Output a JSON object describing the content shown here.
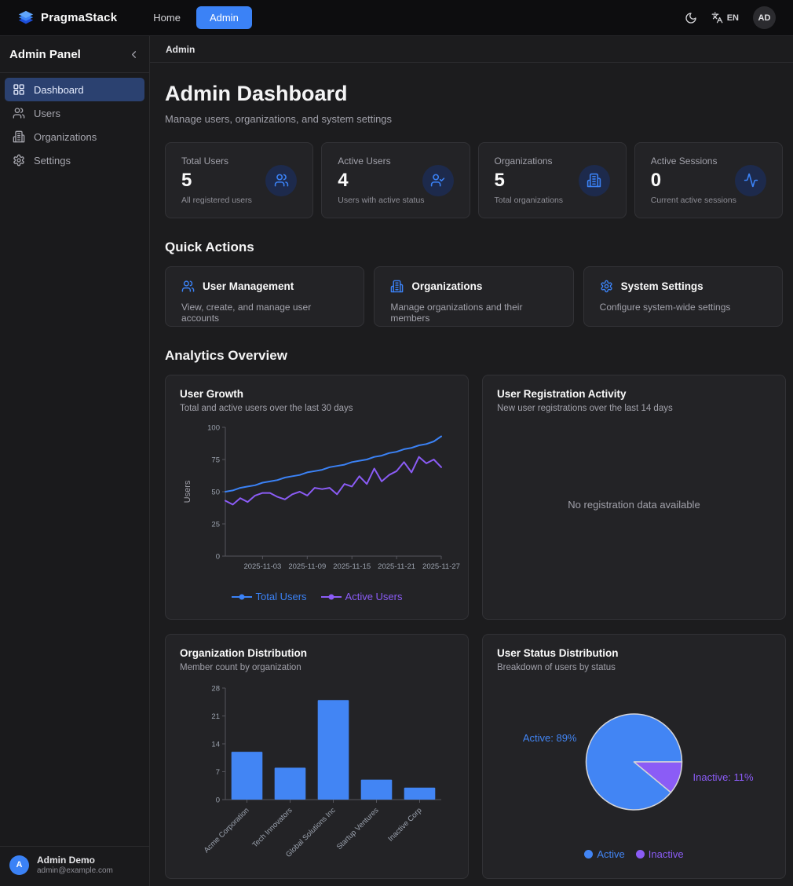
{
  "navbar": {
    "brand": "PragmaStack",
    "links": [
      {
        "label": "Home",
        "active": false
      },
      {
        "label": "Admin",
        "active": true
      }
    ],
    "language": "EN",
    "avatar_initials": "AD"
  },
  "sidebar": {
    "title": "Admin Panel",
    "items": [
      {
        "label": "Dashboard",
        "icon": "dashboard-icon",
        "active": true
      },
      {
        "label": "Users",
        "icon": "users-icon",
        "active": false
      },
      {
        "label": "Organizations",
        "icon": "building-icon",
        "active": false
      },
      {
        "label": "Settings",
        "icon": "gear-icon",
        "active": false
      }
    ],
    "user": {
      "initial": "A",
      "name": "Admin Demo",
      "email": "admin@example.com"
    }
  },
  "breadcrumb": "Admin",
  "header": {
    "title": "Admin Dashboard",
    "subtitle": "Manage users, organizations, and system settings"
  },
  "stats": [
    {
      "label": "Total Users",
      "value": "5",
      "description": "All registered users",
      "icon": "users-icon"
    },
    {
      "label": "Active Users",
      "value": "4",
      "description": "Users with active status",
      "icon": "user-check-icon"
    },
    {
      "label": "Organizations",
      "value": "5",
      "description": "Total organizations",
      "icon": "building-icon"
    },
    {
      "label": "Active Sessions",
      "value": "0",
      "description": "Current active sessions",
      "icon": "activity-icon"
    }
  ],
  "quick_actions": {
    "heading": "Quick Actions",
    "cards": [
      {
        "title": "User Management",
        "description": "View, create, and manage user accounts",
        "icon": "users-icon"
      },
      {
        "title": "Organizations",
        "description": "Manage organizations and their members",
        "icon": "building-icon"
      },
      {
        "title": "System Settings",
        "description": "Configure system-wide settings",
        "icon": "gear-icon"
      }
    ]
  },
  "analytics": {
    "heading": "Analytics Overview"
  },
  "colors": {
    "accent_blue": "#3b82f6",
    "purple": "#8b5cf6",
    "active_nav_bg": "#2b4170",
    "pie_blue": "#4285f4"
  },
  "chart_data": [
    {
      "name": "user-growth",
      "type": "line",
      "title": "User Growth",
      "subtitle": "Total and active users over the last 30 days",
      "ylabel": "Users",
      "ylim": [
        0,
        100
      ],
      "yticks": [
        0,
        25,
        50,
        75,
        100
      ],
      "x_tick_labels": [
        "2025-11-03",
        "2025-11-09",
        "2025-11-15",
        "2025-11-21",
        "2025-11-27"
      ],
      "tick_indices": [
        5,
        11,
        17,
        23,
        29
      ],
      "grid": false,
      "legend_position": "bottom",
      "series": [
        {
          "name": "Total Users",
          "color": "#3b82f6",
          "values": [
            50,
            51,
            53,
            54,
            55,
            57,
            58,
            59,
            61,
            62,
            63,
            65,
            66,
            67,
            69,
            70,
            71,
            73,
            74,
            75,
            77,
            78,
            80,
            81,
            83,
            84,
            86,
            87,
            89,
            93
          ]
        },
        {
          "name": "Active Users",
          "color": "#8b5cf6",
          "values": [
            43,
            40,
            45,
            42,
            47,
            49,
            49,
            46,
            44,
            48,
            50,
            47,
            53,
            52,
            53,
            48,
            56,
            54,
            62,
            56,
            68,
            58,
            63,
            66,
            73,
            65,
            77,
            72,
            75,
            69
          ]
        }
      ]
    },
    {
      "name": "user-registration-activity",
      "type": "bar",
      "title": "User Registration Activity",
      "subtitle": "New user registrations over the last 14 days",
      "categories": [],
      "values": [],
      "empty_message": "No registration data available"
    },
    {
      "name": "organization-distribution",
      "type": "bar",
      "title": "Organization Distribution",
      "subtitle": "Member count by organization",
      "categories": [
        "Acme Corporation",
        "Tech Innovators",
        "Global Solutions Inc",
        "Startup Ventures",
        "Inactive Corp"
      ],
      "values": [
        12,
        8,
        25,
        5,
        3
      ],
      "ylim": [
        0,
        28
      ],
      "yticks": [
        0,
        7,
        14,
        21,
        28
      ],
      "grid": false,
      "bar_color": "#4285f4"
    },
    {
      "name": "user-status-distribution",
      "type": "pie",
      "title": "User Status Distribution",
      "subtitle": "Breakdown of users by status",
      "legend_position": "bottom",
      "slices": [
        {
          "label": "Active",
          "pct": 89,
          "color": "#4285f4"
        },
        {
          "label": "Inactive",
          "pct": 11,
          "color": "#8b5cf6"
        }
      ]
    }
  ]
}
